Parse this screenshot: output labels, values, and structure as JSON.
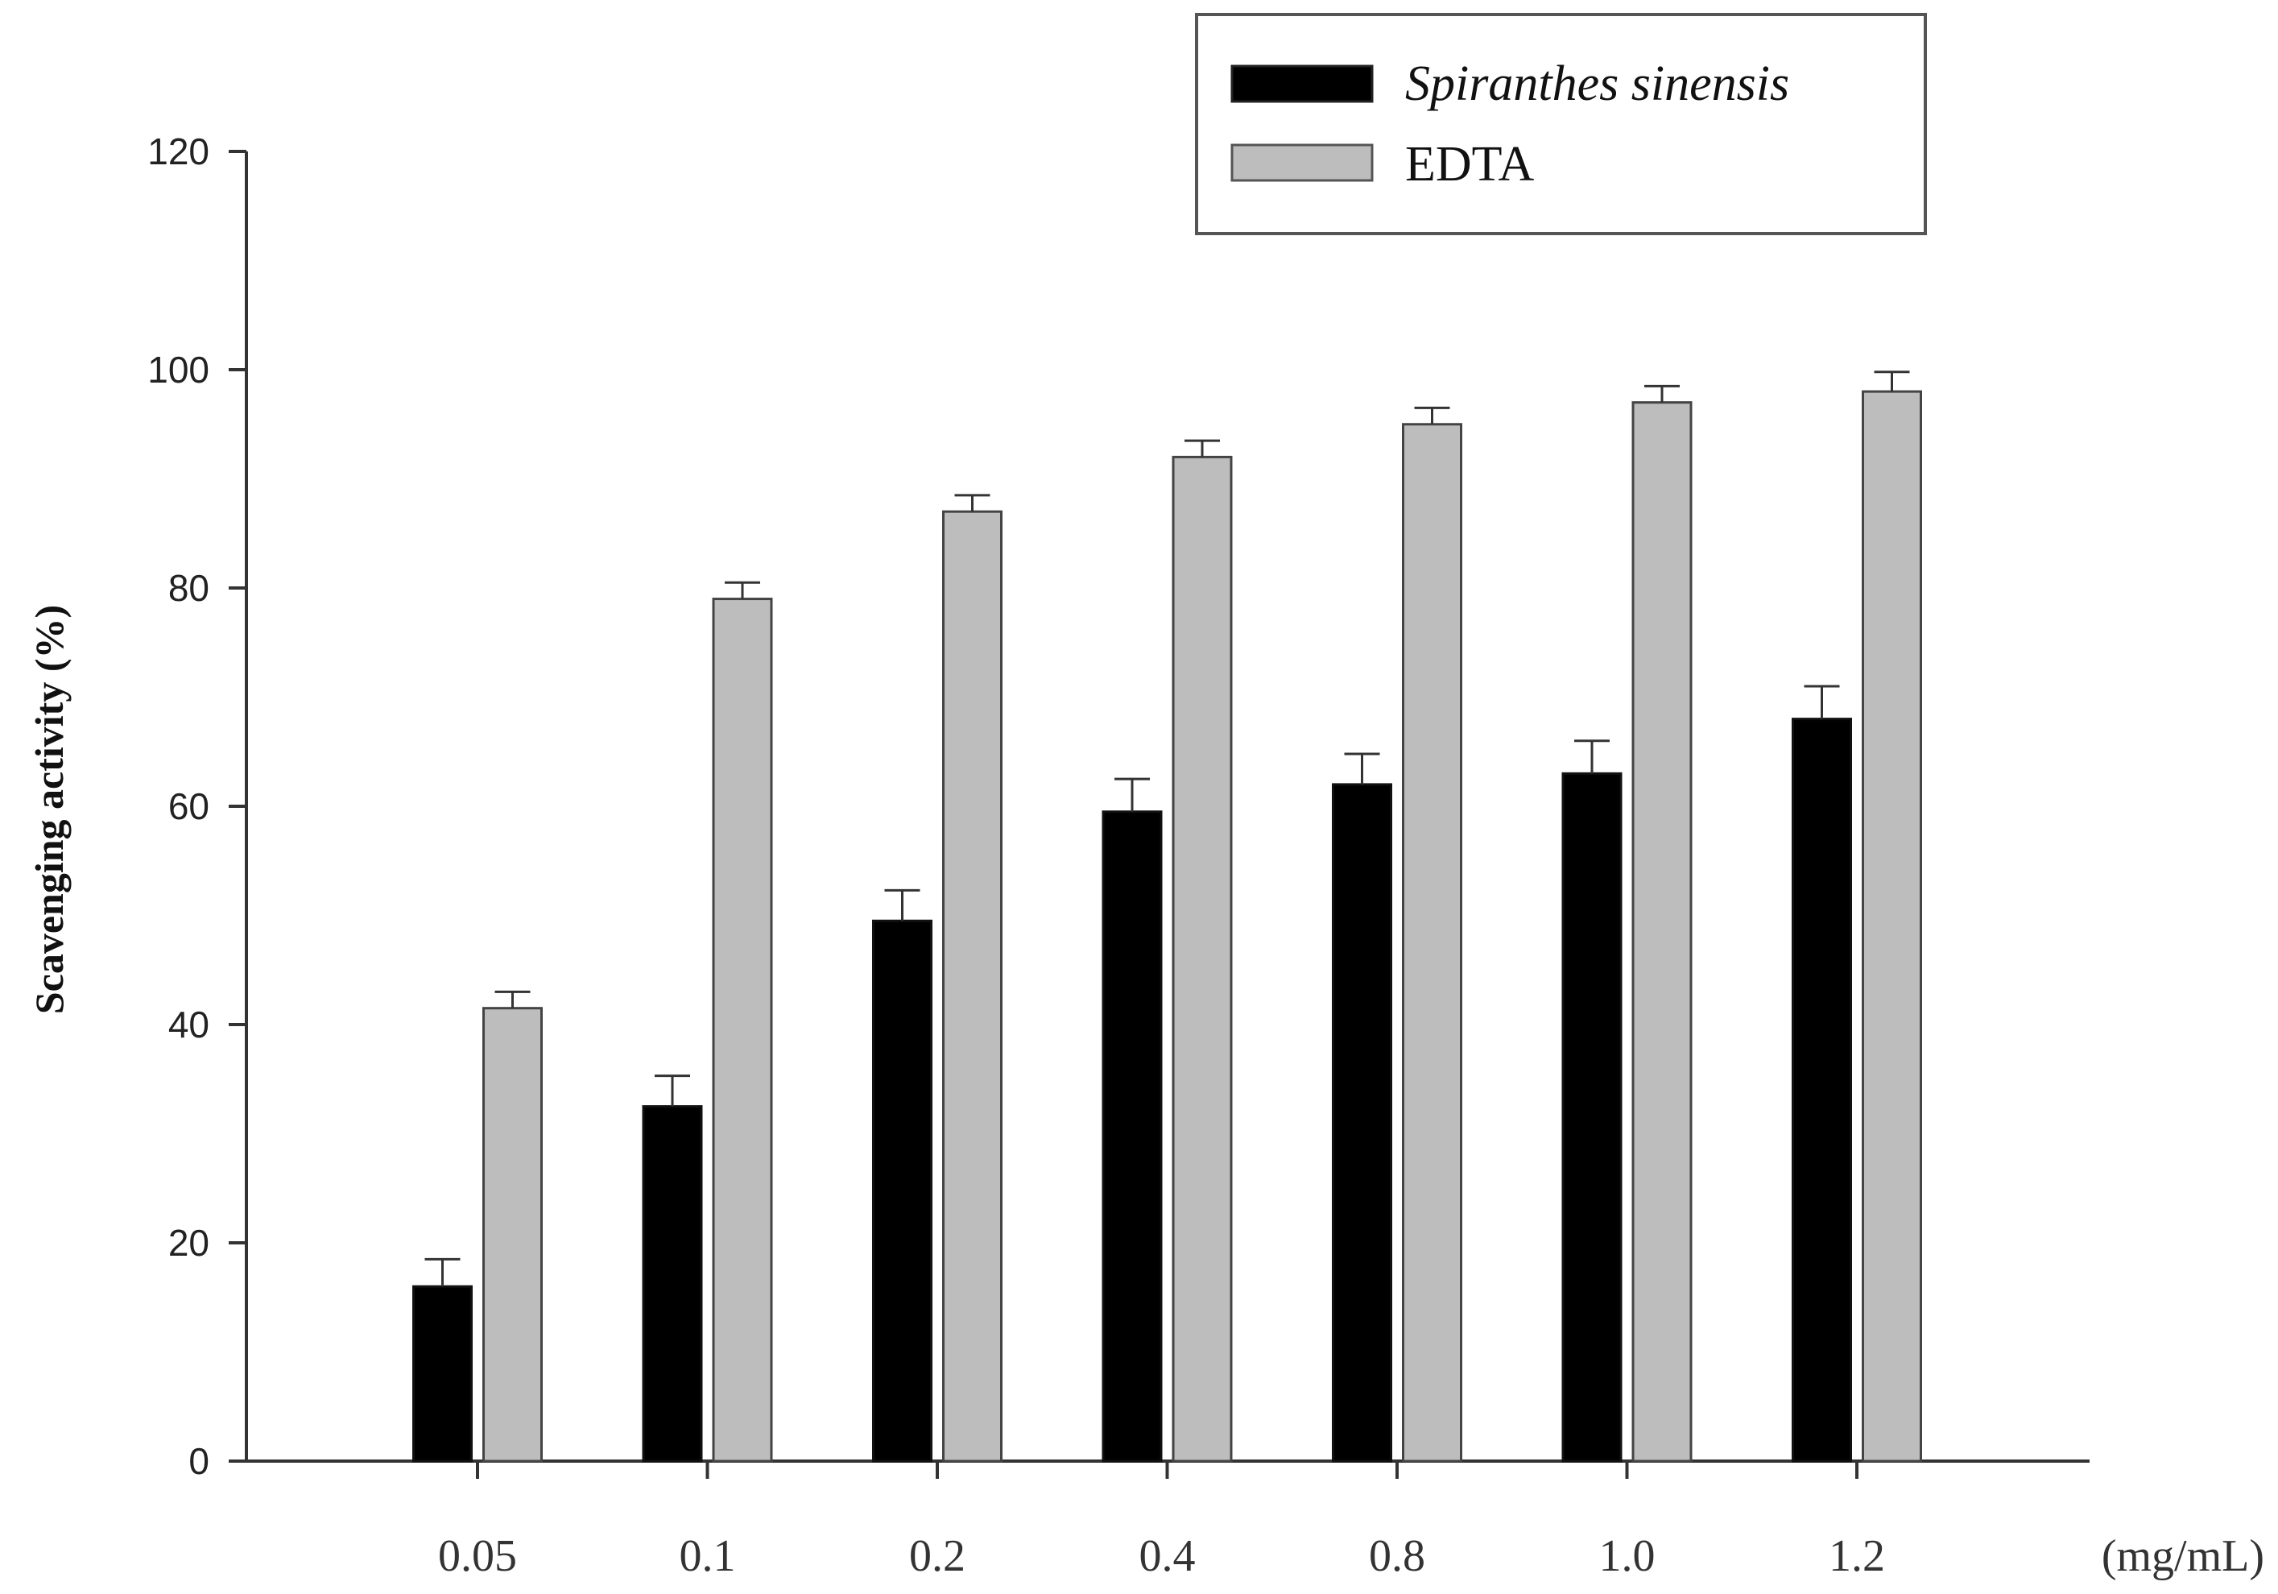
{
  "chart_data": {
    "type": "bar",
    "ylabel": "Scavenging activity (%)",
    "xunit": "(mg/mL)",
    "ylim": [
      0,
      120
    ],
    "yticks": [
      0,
      20,
      40,
      60,
      80,
      100,
      120
    ],
    "categories": [
      "0.05",
      "0.1",
      "0.2",
      "0.4",
      "0.8",
      "1.0",
      "1.2"
    ],
    "series": [
      {
        "name": "Spiranthes sinensis",
        "color": "#000000",
        "values": [
          16,
          32.5,
          49.5,
          59.5,
          62,
          63,
          68
        ],
        "errors": [
          2.5,
          2.8,
          2.8,
          3,
          2.8,
          3,
          3
        ]
      },
      {
        "name": "EDTA",
        "color": "#bdbdbd",
        "values": [
          41.5,
          79,
          87,
          92,
          95,
          97,
          98
        ],
        "errors": [
          1.5,
          1.5,
          1.5,
          1.5,
          1.5,
          1.5,
          1.8
        ]
      }
    ],
    "legend_position": "top-right",
    "grid": false
  }
}
